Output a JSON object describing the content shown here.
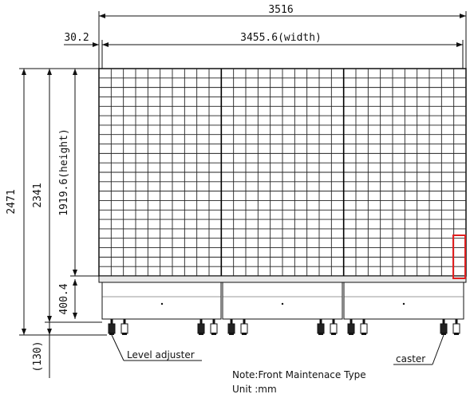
{
  "dimensions": {
    "overall_width": "3516",
    "offset": "30.2",
    "width_label": "3455.6(width)",
    "total_height": "2471",
    "frame_height": "2341",
    "screen_height": "1919.6(height)",
    "base_height": "400.4",
    "caster_height": "(130)"
  },
  "labels": {
    "level_adjuster": "Level adjuster",
    "caster": "caster"
  },
  "notes": {
    "type": "Note:Front Maintenace Type",
    "unit": "Unit :mm"
  },
  "panel": {
    "columns": 30,
    "rows": 22,
    "sections": 3
  },
  "colors": {
    "highlight": "#e02020",
    "line": "#111111"
  }
}
